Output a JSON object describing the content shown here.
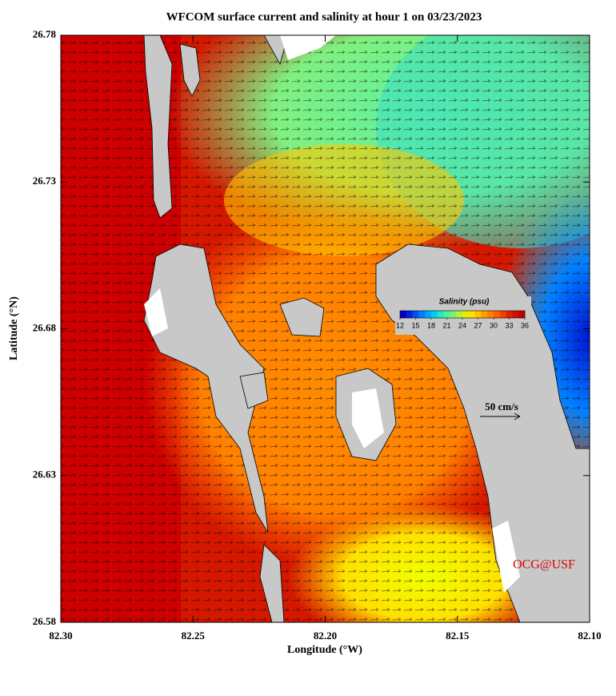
{
  "chart_data": {
    "type": "map",
    "title": "WFCOM surface current and salinity at hour 1 on 03/23/2023",
    "x_label": "Longitude (°W)",
    "y_label": "Latitude (°N)",
    "xlim": [
      82.3,
      82.1
    ],
    "ylim": [
      26.58,
      26.78
    ],
    "xticks": [
      {
        "value": 82.3,
        "label": "82.30"
      },
      82.25,
      {
        "value": 82.2,
        "label": "82.20"
      },
      82.15,
      {
        "value": 82.1,
        "label": "82.10"
      }
    ],
    "yticks": [
      26.58,
      26.63,
      26.68,
      26.73,
      26.78
    ],
    "colorbar": {
      "label": "Salinity (psu)",
      "lim": [
        12,
        36
      ],
      "ticks": [
        12,
        15,
        18,
        21,
        24,
        27,
        30,
        33,
        36
      ],
      "colors": [
        "#0000c8",
        "#0020e0",
        "#0050f0",
        "#0080ff",
        "#00a8ff",
        "#00d0f0",
        "#20e8c8",
        "#50f0a0",
        "#80f070",
        "#b0f040",
        "#e0f000",
        "#ffe000",
        "#ffc000",
        "#ffa000",
        "#ff8000",
        "#ff6000",
        "#f04000",
        "#e02000",
        "#d01000",
        "#c00000"
      ]
    },
    "scale_label": "50 cm/s",
    "credit": "OCG@USF"
  }
}
